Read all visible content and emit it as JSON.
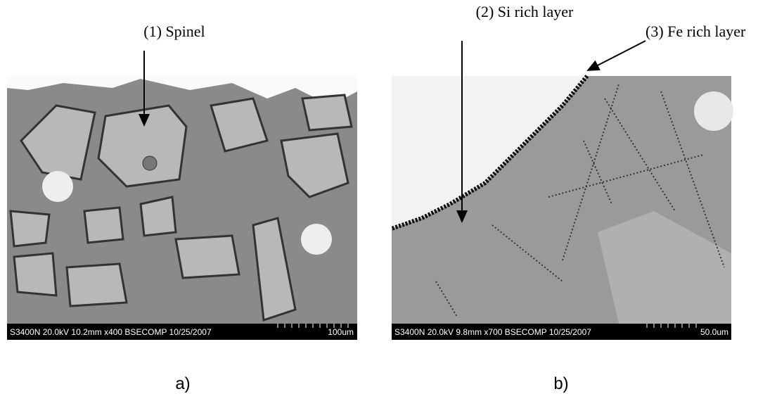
{
  "panel_a": {
    "annotations": [
      "(1) Spinel"
    ],
    "info_bar": "S3400N 20.0kV 10.2mm x400 BSECOMP  10/25/2007",
    "scale_bar": "100um",
    "caption": "a)"
  },
  "panel_b": {
    "annotations": [
      "(2) Si rich layer",
      "(3) Fe rich layer"
    ],
    "info_bar": "S3400N 20.0kV 9.8mm x700 BSECOMP  10/25/2007",
    "scale_bar": "50.0um",
    "caption": "b)"
  }
}
